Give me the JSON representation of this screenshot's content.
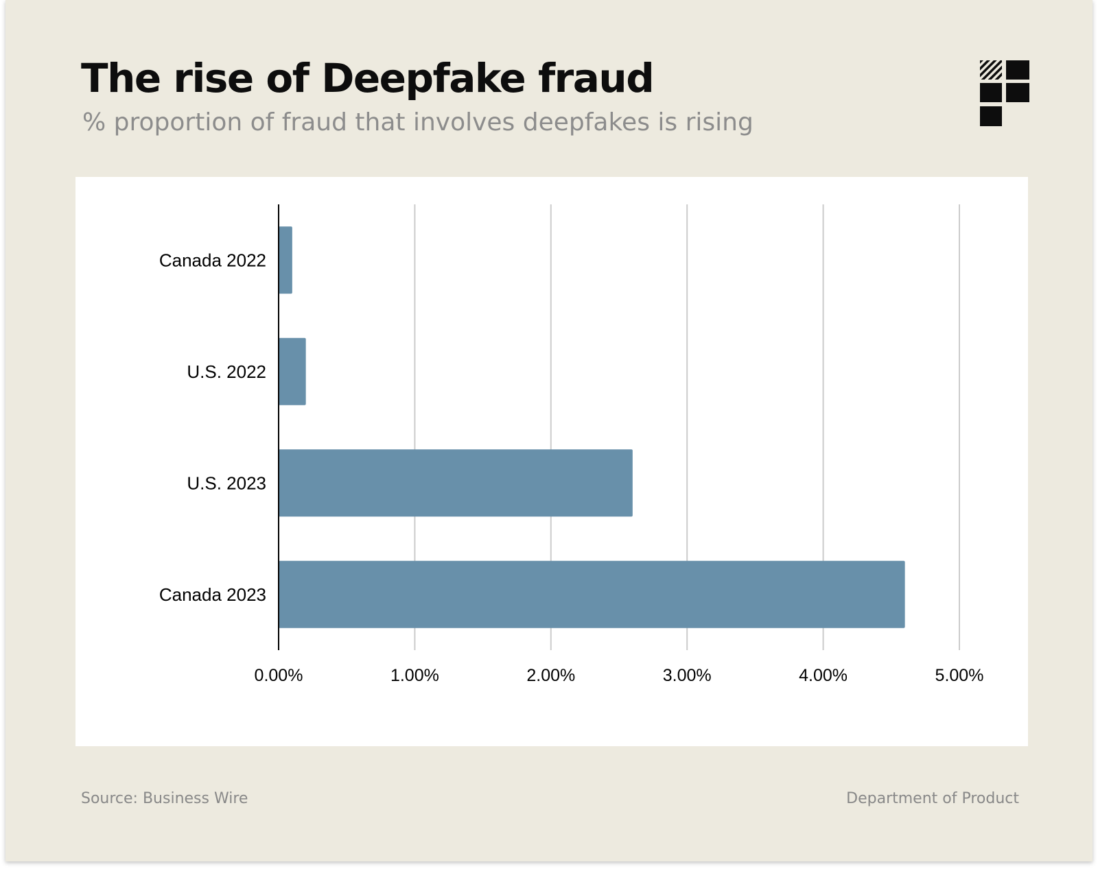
{
  "title": "The rise of Deepfake fraud",
  "subtitle": "% proportion of fraud that involves deepfakes is rising",
  "footer": {
    "source": "Source: Business Wire",
    "brand": "Department of Product"
  },
  "logo_icon": "department-of-product-logo-icon",
  "colors": {
    "bar": "#6890aa",
    "gridline": "#cccccc",
    "axis": "#000000",
    "background": "#edeadf",
    "plot_background": "#ffffff",
    "title": "#0d0d0d",
    "subtitle": "#8c8c8c"
  },
  "chart_data": {
    "type": "bar",
    "orientation": "horizontal",
    "categories": [
      "Canada 2022",
      "U.S. 2022",
      "U.S. 2023",
      "Canada 2023"
    ],
    "values": [
      0.1,
      0.2,
      2.6,
      4.6
    ],
    "unit": "%",
    "xlim": [
      0,
      5
    ],
    "xticks": [
      0,
      1,
      2,
      3,
      4,
      5
    ],
    "xtick_labels": [
      "0.00%",
      "1.00%",
      "2.00%",
      "3.00%",
      "4.00%",
      "5.00%"
    ],
    "grid": "vertical",
    "title": "The rise of Deepfake fraud",
    "subtitle": "% proportion of fraud that involves deepfakes is rising",
    "xlabel": "",
    "ylabel": ""
  }
}
